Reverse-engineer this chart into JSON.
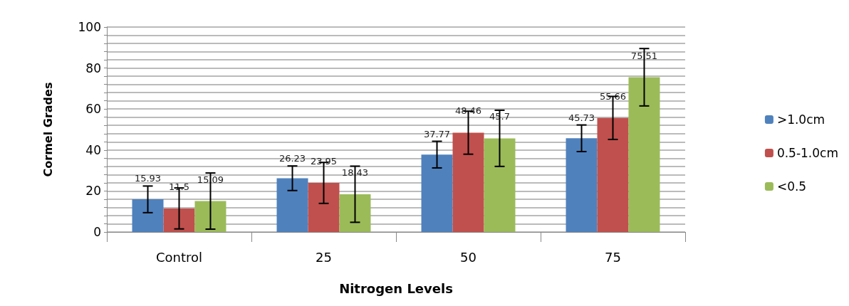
{
  "chart_data": {
    "type": "bar",
    "xlabel": "Nitrogen Levels",
    "ylabel": "Cormel Grades",
    "categories": [
      "Control",
      "25",
      "50",
      "75"
    ],
    "series": [
      {
        "name": ">1.0cm",
        "color": "#4f81bd",
        "values": [
          15.93,
          26.23,
          37.77,
          45.73
        ],
        "errors": [
          6.5,
          6,
          6.5,
          6.5
        ]
      },
      {
        "name": "0.5-1.0cm",
        "color": "#c0504d",
        "values": [
          11.5,
          23.95,
          48.46,
          55.66
        ],
        "errors": [
          10,
          10,
          10.5,
          10.5
        ]
      },
      {
        "name": "<0.5",
        "color": "#9bbb59",
        "values": [
          15.09,
          18.43,
          45.7,
          75.51
        ],
        "errors": [
          13.7,
          13.7,
          13.7,
          14
        ]
      }
    ],
    "ylim": [
      0,
      100
    ],
    "yticks": [
      0,
      {
        "value": 4,
        "label": null
      },
      {
        "value": 8,
        "label": null
      },
      {
        "value": 12,
        "label": null
      },
      {
        "value": 16,
        "label": null
      },
      20,
      {
        "value": 24,
        "label": null
      },
      {
        "value": 28,
        "label": null
      },
      {
        "value": 32,
        "label": null
      },
      {
        "value": 36,
        "label": null
      },
      40,
      {
        "value": 44,
        "label": null
      },
      {
        "value": 48,
        "label": null
      },
      {
        "value": 52,
        "label": null
      },
      {
        "value": 56,
        "label": null
      },
      60,
      {
        "value": 64,
        "label": null
      },
      {
        "value": 68,
        "label": null
      },
      {
        "value": 72,
        "label": null
      },
      {
        "value": 76,
        "label": null
      },
      80,
      {
        "value": 84,
        "label": null
      },
      {
        "value": 88,
        "label": null
      },
      {
        "value": 92,
        "label": null
      },
      {
        "value": 96,
        "label": null
      },
      100
    ],
    "grid": "y",
    "legend": "right",
    "data_labels": true
  }
}
